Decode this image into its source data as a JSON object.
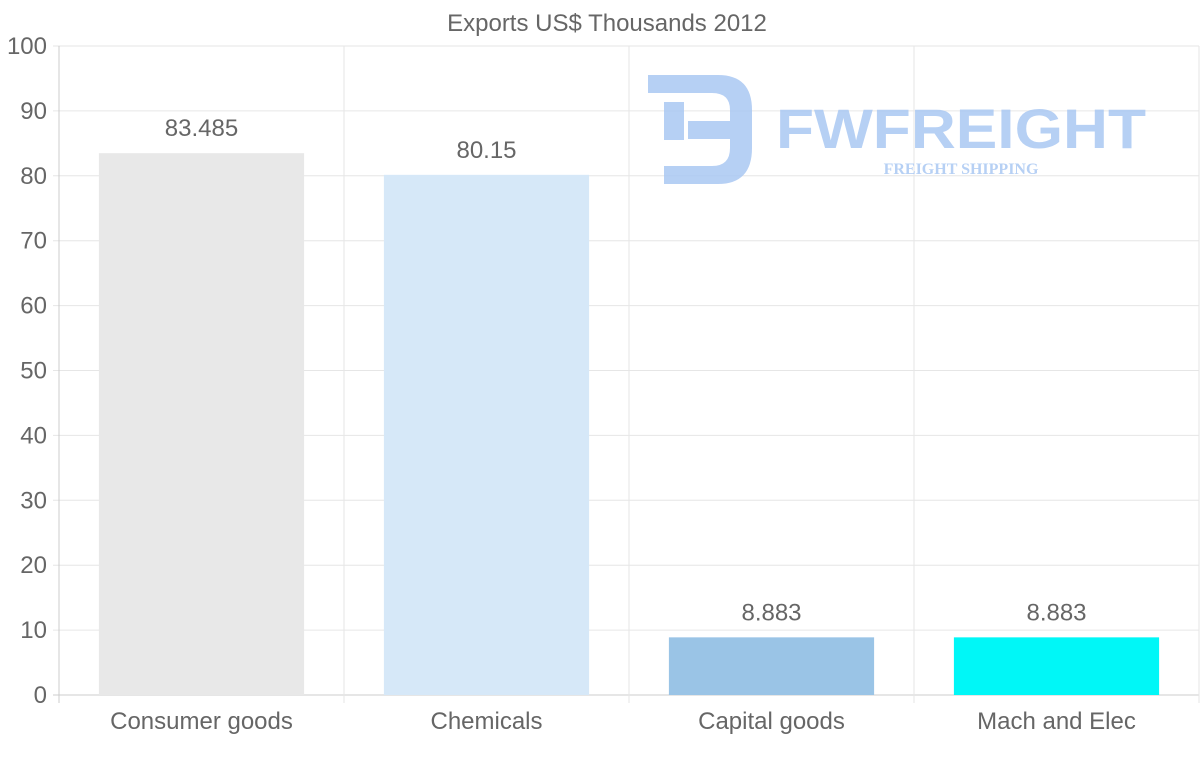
{
  "chart_data": {
    "type": "bar",
    "title": "Exports US$ Thousands 2012",
    "categories": [
      "Consumer goods",
      "Chemicals",
      "Capital goods",
      "Mach and Elec"
    ],
    "values": [
      83.485,
      80.15,
      8.883,
      8.883
    ],
    "value_labels": [
      "83.485",
      "80.15",
      "8.883",
      "8.883"
    ],
    "bar_colors": [
      "#e8e8e8",
      "#d6e8f8",
      "#9ac4e6",
      "#00f7f7"
    ],
    "ylim": [
      0,
      100
    ],
    "yticks": [
      0,
      10,
      20,
      30,
      40,
      50,
      60,
      70,
      80,
      90,
      100
    ],
    "xlabel": "",
    "ylabel": "",
    "grid": true,
    "legend": "none"
  },
  "watermark": {
    "brand": "FWFREIGHT",
    "tagline": "FREIGHT SHIPPING",
    "color": "#aac8f3"
  },
  "colors": {
    "text": "#666666",
    "grid": "#e6e6e6",
    "axis": "#cccccc"
  }
}
